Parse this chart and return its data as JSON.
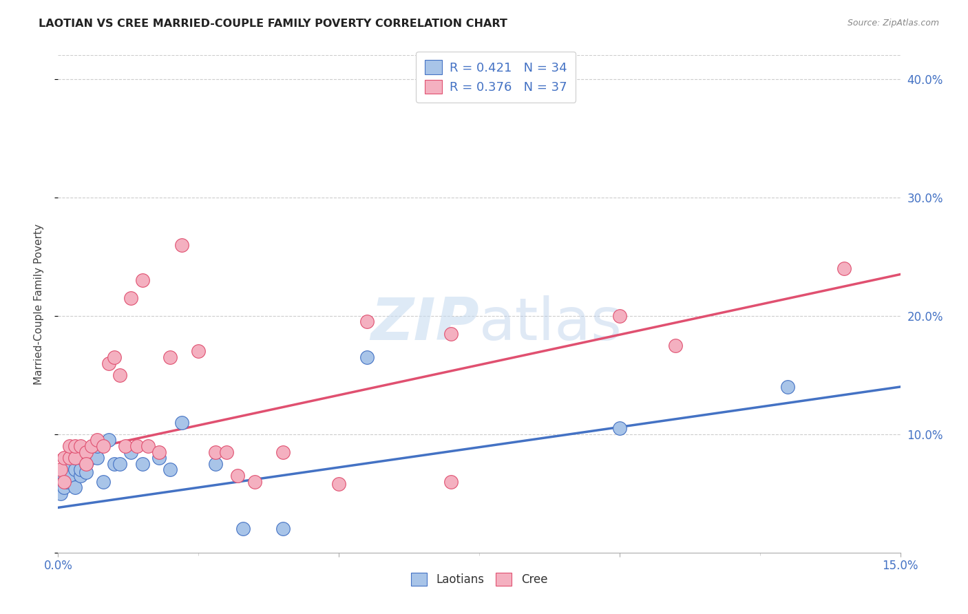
{
  "title": "LAOTIAN VS CREE MARRIED-COUPLE FAMILY POVERTY CORRELATION CHART",
  "source": "Source: ZipAtlas.com",
  "ylabel": "Married-Couple Family Poverty",
  "xlim": [
    0.0,
    0.15
  ],
  "ylim": [
    0.0,
    0.42
  ],
  "laotian_color": "#a8c4e8",
  "cree_color": "#f4b0c0",
  "laotian_line_color": "#4472c4",
  "cree_line_color": "#e05070",
  "laotian_R": "0.421",
  "laotian_N": "34",
  "cree_R": "0.376",
  "cree_N": "37",
  "laotian_intercept": 0.038,
  "laotian_slope": 0.68,
  "cree_intercept": 0.082,
  "cree_slope": 1.02,
  "laotian_x": [
    0.0005,
    0.001,
    0.001,
    0.0015,
    0.002,
    0.002,
    0.002,
    0.003,
    0.003,
    0.003,
    0.004,
    0.004,
    0.004,
    0.005,
    0.005,
    0.005,
    0.006,
    0.007,
    0.007,
    0.008,
    0.009,
    0.01,
    0.011,
    0.013,
    0.015,
    0.018,
    0.02,
    0.022,
    0.028,
    0.033,
    0.04,
    0.055,
    0.1,
    0.13
  ],
  "laotian_y": [
    0.05,
    0.055,
    0.065,
    0.06,
    0.07,
    0.065,
    0.075,
    0.055,
    0.07,
    0.08,
    0.065,
    0.07,
    0.08,
    0.075,
    0.068,
    0.085,
    0.08,
    0.08,
    0.09,
    0.06,
    0.095,
    0.075,
    0.075,
    0.085,
    0.075,
    0.08,
    0.07,
    0.11,
    0.075,
    0.02,
    0.02,
    0.165,
    0.105,
    0.14
  ],
  "cree_x": [
    0.0005,
    0.001,
    0.001,
    0.002,
    0.002,
    0.003,
    0.003,
    0.004,
    0.005,
    0.005,
    0.006,
    0.007,
    0.008,
    0.009,
    0.01,
    0.011,
    0.012,
    0.013,
    0.014,
    0.015,
    0.016,
    0.018,
    0.02,
    0.022,
    0.025,
    0.028,
    0.03,
    0.032,
    0.035,
    0.04,
    0.05,
    0.055,
    0.07,
    0.07,
    0.1,
    0.11,
    0.14
  ],
  "cree_y": [
    0.07,
    0.06,
    0.08,
    0.08,
    0.09,
    0.08,
    0.09,
    0.09,
    0.085,
    0.075,
    0.09,
    0.095,
    0.09,
    0.16,
    0.165,
    0.15,
    0.09,
    0.215,
    0.09,
    0.23,
    0.09,
    0.085,
    0.165,
    0.26,
    0.17,
    0.085,
    0.085,
    0.065,
    0.06,
    0.085,
    0.058,
    0.195,
    0.06,
    0.185,
    0.2,
    0.175,
    0.24
  ],
  "bg_color": "#ffffff",
  "grid_color": "#cccccc",
  "grid_linestyle": "--"
}
